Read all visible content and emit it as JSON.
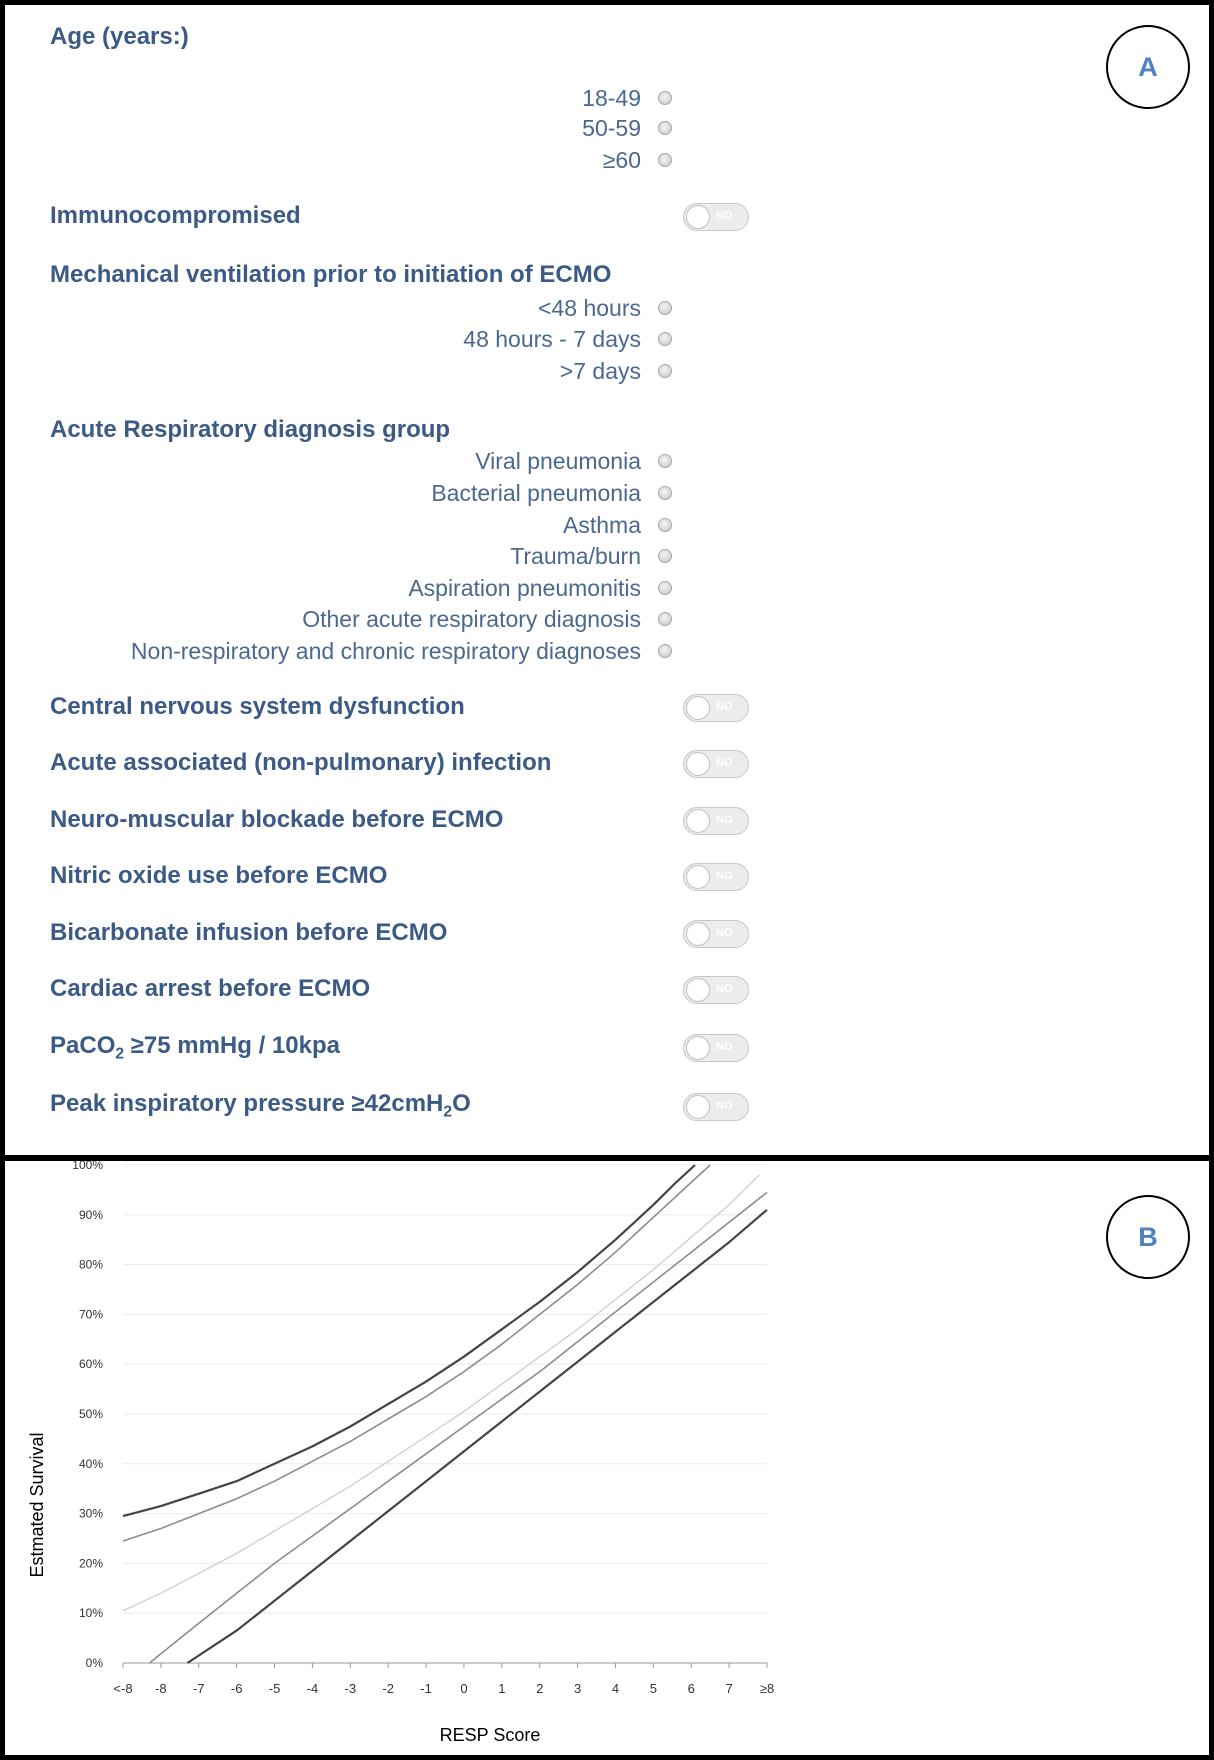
{
  "panel_a": {
    "label": "A",
    "age": {
      "title": "Age (years:)",
      "options": [
        "18-49",
        "50-59",
        "≥60"
      ]
    },
    "immunocompromised": {
      "title": "Immunocompromised",
      "toggle": "NO"
    },
    "mech_vent": {
      "title": "Mechanical ventilation prior to initiation of ECMO",
      "options": [
        "<48 hours",
        "48 hours - 7 days",
        ">7 days"
      ]
    },
    "diagnosis": {
      "title": "Acute Respiratory diagnosis group",
      "options": [
        "Viral pneumonia",
        "Bacterial pneumonia",
        "Asthma",
        "Trauma/burn",
        "Aspiration pneumonitis",
        "Other acute respiratory diagnosis",
        "Non-respiratory and chronic respiratory diagnoses"
      ]
    },
    "toggles": [
      {
        "title": "Central nervous system dysfunction",
        "value": "NO"
      },
      {
        "title": "Acute associated (non-pulmonary) infection",
        "value": "NO"
      },
      {
        "title": "Neuro-muscular blockade before ECMO",
        "value": "NO"
      },
      {
        "title": "Nitric oxide use before ECMO",
        "value": "NO"
      },
      {
        "title": "Bicarbonate infusion before ECMO",
        "value": "NO"
      },
      {
        "title": "Cardiac arrest before ECMO",
        "value": "NO"
      }
    ],
    "paco2": {
      "pre": "PaCO",
      "sub": "2",
      "post": " ≥75 mmHg / 10kpa",
      "toggle": "NO"
    },
    "pip": {
      "pre": "Peak inspiratory pressure ≥42cmH",
      "sub": "2",
      "post": "O",
      "toggle": "NO"
    }
  },
  "panel_b": {
    "label": "B"
  },
  "chart_data": {
    "type": "line",
    "xlabel": "RESP Score",
    "ylabel": "Estmated Survival",
    "x_tick_labels": [
      "<-8",
      "-8",
      "-7",
      "-6",
      "-5",
      "-4",
      "-3",
      "-2",
      "-1",
      "0",
      "1",
      "2",
      "3",
      "4",
      "5",
      "6",
      "7",
      "≥8"
    ],
    "x": [
      -9,
      -8,
      -7,
      -6,
      -5,
      -4,
      -3,
      -2,
      -1,
      0,
      1,
      2,
      3,
      4,
      5,
      6,
      7,
      8
    ],
    "y_tick_labels": [
      "0%",
      "10%",
      "20%",
      "30%",
      "40%",
      "50%",
      "60%",
      "70%",
      "80%",
      "90%",
      "100%"
    ],
    "ylim": [
      0,
      100
    ],
    "grid": true,
    "series": [
      {
        "color": "#444444",
        "width": 2.2,
        "points": [
          [
            -9,
            29.5
          ],
          [
            -8,
            31.5
          ],
          [
            -7,
            34
          ],
          [
            -6,
            36.5
          ],
          [
            -5,
            40
          ],
          [
            -4,
            43.5
          ],
          [
            -3,
            47.5
          ],
          [
            -2,
            52
          ],
          [
            -1,
            56.5
          ],
          [
            0,
            61.5
          ],
          [
            1,
            67
          ],
          [
            2,
            72.5
          ],
          [
            3,
            78.5
          ],
          [
            4,
            85
          ],
          [
            5,
            92
          ],
          [
            5.6,
            96.5
          ],
          [
            6.1,
            100
          ]
        ]
      },
      {
        "color": "#8c8c8c",
        "width": 1.6,
        "points": [
          [
            -9,
            24.5
          ],
          [
            -8,
            27
          ],
          [
            -7,
            30
          ],
          [
            -6,
            33
          ],
          [
            -5,
            36.5
          ],
          [
            -4,
            40.5
          ],
          [
            -3,
            44.5
          ],
          [
            -2,
            49
          ],
          [
            -1,
            53.5
          ],
          [
            0,
            58.5
          ],
          [
            1,
            64
          ],
          [
            2,
            70
          ],
          [
            3,
            76
          ],
          [
            4,
            82.5
          ],
          [
            5,
            89.5
          ],
          [
            6,
            96.5
          ],
          [
            6.5,
            100
          ]
        ]
      },
      {
        "color": "#d0d0d0",
        "width": 1.4,
        "points": [
          [
            -9,
            10.5
          ],
          [
            -8,
            14
          ],
          [
            -7,
            18
          ],
          [
            -6,
            22
          ],
          [
            -5,
            26.5
          ],
          [
            -4,
            31
          ],
          [
            -3,
            35.5
          ],
          [
            -2,
            40.5
          ],
          [
            -1,
            45.5
          ],
          [
            0,
            50.5
          ],
          [
            1,
            56
          ],
          [
            2,
            61.5
          ],
          [
            3,
            67
          ],
          [
            4,
            73
          ],
          [
            5,
            79
          ],
          [
            6,
            85.5
          ],
          [
            7,
            92
          ],
          [
            7.8,
            98
          ]
        ]
      },
      {
        "color": "#8c8c8c",
        "width": 1.6,
        "points": [
          [
            -8.3,
            0
          ],
          [
            -7,
            8
          ],
          [
            -6,
            14
          ],
          [
            -5,
            20
          ],
          [
            -4,
            25.5
          ],
          [
            -3,
            31
          ],
          [
            -2,
            36.5
          ],
          [
            -1,
            42
          ],
          [
            0,
            47.5
          ],
          [
            1,
            53
          ],
          [
            2,
            58.5
          ],
          [
            3,
            64.5
          ],
          [
            4,
            70.5
          ],
          [
            5,
            76.5
          ],
          [
            6,
            82.5
          ],
          [
            7,
            88.5
          ],
          [
            8,
            94.5
          ]
        ]
      },
      {
        "color": "#444444",
        "width": 2.2,
        "points": [
          [
            -7.3,
            0
          ],
          [
            -6,
            6.5
          ],
          [
            -5,
            12.5
          ],
          [
            -4,
            18.5
          ],
          [
            -3,
            24.5
          ],
          [
            -2,
            30.5
          ],
          [
            -1,
            36.5
          ],
          [
            0,
            42.5
          ],
          [
            1,
            48.5
          ],
          [
            2,
            54.5
          ],
          [
            3,
            60.5
          ],
          [
            4,
            66.5
          ],
          [
            5,
            72.5
          ],
          [
            6,
            78.5
          ],
          [
            7,
            84.5
          ],
          [
            8,
            91
          ]
        ]
      }
    ]
  }
}
